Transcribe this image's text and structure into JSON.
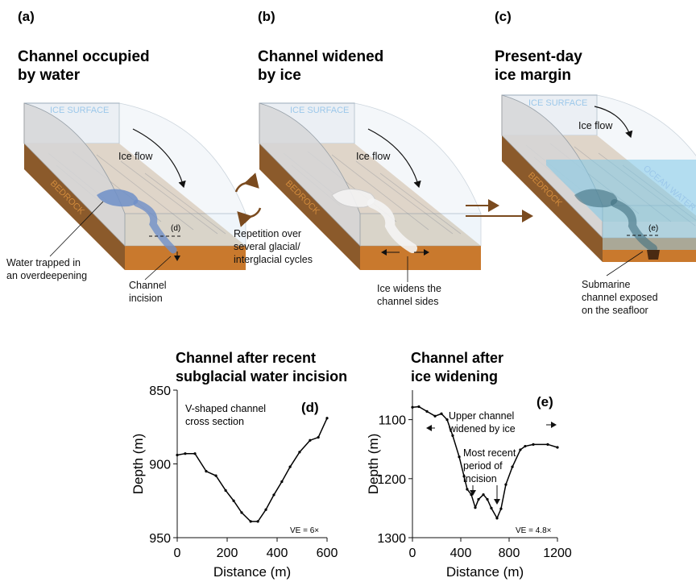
{
  "panels": [
    {
      "label": "(a)",
      "title": [
        "Channel occupied",
        "by water"
      ],
      "ice_surface": "ICE SURFACE",
      "ice_flow": "Ice flow",
      "bedrock": "BEDROCK",
      "section": "(d)",
      "callouts": [
        [
          "Water trapped in",
          "an overdeepening"
        ],
        [
          "Channel",
          "incision"
        ]
      ]
    },
    {
      "label": "(b)",
      "title": [
        "Channel widened",
        "by ice"
      ],
      "ice_surface": "ICE SURFACE",
      "ice_flow": "Ice flow",
      "bedrock": "BEDROCK",
      "callouts": [
        [
          "Ice widens the",
          "channel sides"
        ]
      ]
    },
    {
      "label": "(c)",
      "title": [
        "Present-day",
        "ice margin"
      ],
      "ice_surface": "ICE SURFACE",
      "ice_flow": "Ice flow",
      "bedrock": "BEDROCK",
      "ocean": "OCEAN WATER",
      "section": "(e)",
      "callouts": [
        [
          "Submarine",
          "channel exposed",
          "on the seafloor"
        ]
      ]
    }
  ],
  "repetition": [
    "Repetition over",
    "several glacial/",
    "interglacial cycles"
  ],
  "chart_data": [
    {
      "type": "line",
      "title": [
        "Channel after recent",
        "subglacial water incision"
      ],
      "x_label": "Distance (m)",
      "y_label": "Depth (m)",
      "x": [
        0,
        32,
        71,
        116,
        155,
        194,
        226,
        258,
        294,
        323,
        355,
        387,
        419,
        452,
        490,
        532,
        565,
        600
      ],
      "values": [
        894,
        893,
        893,
        905,
        908,
        918,
        925,
        933,
        939,
        939,
        931,
        921,
        912,
        902,
        892,
        884,
        882,
        869
      ],
      "color": "#000000",
      "xlim": [
        0,
        600
      ],
      "ylim": [
        850,
        950
      ],
      "y_inverted": true,
      "xticks": [
        0,
        200,
        400,
        600
      ],
      "yticks": [
        850,
        900,
        950
      ],
      "annotations": [
        [
          "V-shaped channel",
          "cross section"
        ],
        [
          "(d)"
        ],
        [
          "VE = 6×"
        ]
      ]
    },
    {
      "type": "line",
      "title": [
        "Channel after",
        "ice widening"
      ],
      "x_label": "Distance (m)",
      "y_label": "Depth (m)",
      "x": [
        0,
        53,
        120,
        187,
        240,
        287,
        333,
        387,
        427,
        453,
        487,
        520,
        547,
        587,
        620,
        653,
        700,
        733,
        773,
        827,
        893,
        933,
        1000,
        1120,
        1200
      ],
      "values": [
        1079,
        1078,
        1086,
        1094,
        1090,
        1100,
        1127,
        1163,
        1196,
        1218,
        1227,
        1249,
        1235,
        1227,
        1235,
        1250,
        1267,
        1251,
        1210,
        1180,
        1151,
        1145,
        1142,
        1142,
        1147
      ],
      "color": "#000000",
      "xlim": [
        0,
        1200
      ],
      "ylim": [
        1050,
        1300
      ],
      "y_inverted": true,
      "xticks": [
        0,
        400,
        800,
        1200
      ],
      "yticks": [
        1100,
        1200,
        1300
      ],
      "annotations": [
        [
          "Upper channel",
          "widened by ice"
        ],
        [
          "Most recent",
          "period of",
          "incision"
        ],
        [
          "(e)"
        ],
        [
          "VE = 4.8×"
        ]
      ]
    }
  ]
}
